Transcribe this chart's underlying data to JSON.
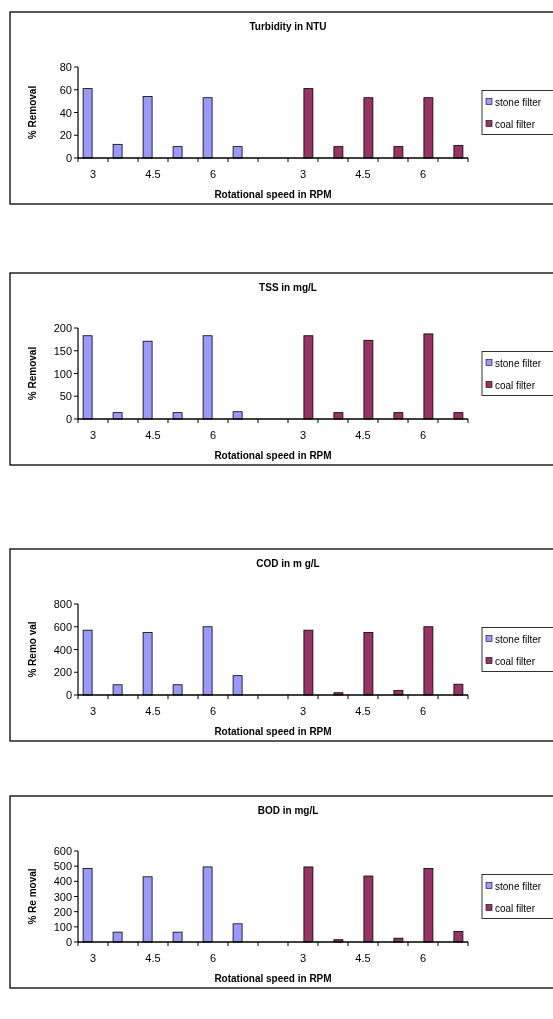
{
  "chart_data": [
    {
      "type": "bar",
      "title": "Turbidity in NTU",
      "xlabel": "Rotational speed in RPM",
      "ylabel": "% Removal",
      "categories": [
        "3",
        null,
        "4.5",
        null,
        "6",
        null,
        null,
        "3",
        null,
        "4.5",
        null,
        "6",
        null
      ],
      "ylim": [
        0,
        80
      ],
      "yticks": [
        0,
        20,
        40,
        60,
        80
      ],
      "legend": "right",
      "series": [
        {
          "name": "stone filter",
          "color": "#9999ff",
          "values": [
            61,
            12,
            54,
            10,
            53,
            10,
            null,
            null,
            null,
            null,
            null,
            null,
            null
          ]
        },
        {
          "name": "coal filter",
          "color": "#993366",
          "values": [
            null,
            null,
            null,
            null,
            null,
            null,
            null,
            61,
            10,
            53,
            10,
            53,
            11
          ]
        }
      ]
    },
    {
      "type": "bar",
      "title": "TSS in mg/L",
      "xlabel": "Rotational speed in RPM",
      "ylabel": "% Removal",
      "categories": [
        "3",
        null,
        "4.5",
        null,
        "6",
        null,
        null,
        "3",
        null,
        "4.5",
        null,
        "6",
        null
      ],
      "ylim": [
        0,
        200
      ],
      "yticks": [
        0,
        50,
        100,
        150,
        200
      ],
      "legend": "right",
      "series": [
        {
          "name": "stone filter",
          "color": "#9999ff",
          "values": [
            183,
            14,
            171,
            14,
            183,
            16,
            null,
            null,
            null,
            null,
            null,
            null,
            null
          ]
        },
        {
          "name": "coal filter",
          "color": "#993366",
          "values": [
            null,
            null,
            null,
            null,
            null,
            null,
            null,
            183,
            14,
            173,
            14,
            187,
            14
          ]
        }
      ]
    },
    {
      "type": "bar",
      "title": "COD in m g/L",
      "xlabel": "Rotational speed in RPM",
      "ylabel": "% Remo val",
      "categories": [
        "3",
        null,
        "4.5",
        null,
        "6",
        null,
        null,
        "3",
        null,
        "4.5",
        null,
        "6",
        null
      ],
      "ylim": [
        0,
        800
      ],
      "yticks": [
        0,
        200,
        400,
        600,
        800
      ],
      "legend": "right",
      "series": [
        {
          "name": "stone filter",
          "color": "#9999ff",
          "values": [
            570,
            90,
            550,
            90,
            600,
            170,
            null,
            null,
            null,
            null,
            null,
            null,
            null
          ]
        },
        {
          "name": "coal filter",
          "color": "#993366",
          "values": [
            null,
            null,
            null,
            null,
            null,
            null,
            null,
            570,
            20,
            550,
            40,
            600,
            95
          ]
        }
      ]
    },
    {
      "type": "bar",
      "title": "BOD in mg/L",
      "xlabel": "Rotational speed in RPM",
      "ylabel": "% Re moval",
      "categories": [
        "3",
        null,
        "4.5",
        null,
        "6",
        null,
        null,
        "3",
        null,
        "4.5",
        null,
        "6",
        null
      ],
      "ylim": [
        0,
        600
      ],
      "yticks": [
        0,
        100,
        200,
        300,
        400,
        500,
        600
      ],
      "legend": "right",
      "series": [
        {
          "name": "stone filter",
          "color": "#9999ff",
          "values": [
            485,
            65,
            430,
            65,
            495,
            120,
            null,
            null,
            null,
            null,
            null,
            null,
            null
          ]
        },
        {
          "name": "coal filter",
          "color": "#993366",
          "values": [
            null,
            null,
            null,
            null,
            null,
            null,
            null,
            495,
            15,
            435,
            25,
            485,
            70
          ]
        }
      ]
    }
  ]
}
